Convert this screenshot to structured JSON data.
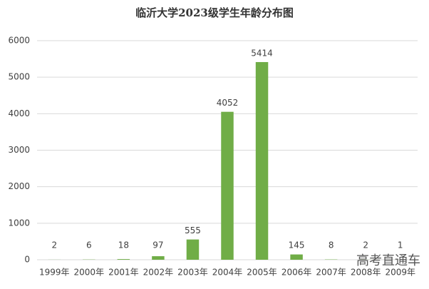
{
  "chart_data": {
    "type": "bar",
    "title": "临沂大学2023级学生年龄分布图",
    "categories": [
      "1999年",
      "2000年",
      "2001年",
      "2002年",
      "2003年",
      "2004年",
      "2005年",
      "2006年",
      "2007年",
      "2008年",
      "2009年"
    ],
    "values": [
      2,
      6,
      18,
      97,
      555,
      4052,
      5414,
      145,
      8,
      2,
      1
    ],
    "color": "#70ad47",
    "ylim": [
      0,
      6000
    ],
    "yticks": [
      0,
      1000,
      2000,
      3000,
      4000,
      5000,
      6000
    ],
    "grid": true,
    "data_labels": true,
    "watermark": "高考直通车"
  }
}
